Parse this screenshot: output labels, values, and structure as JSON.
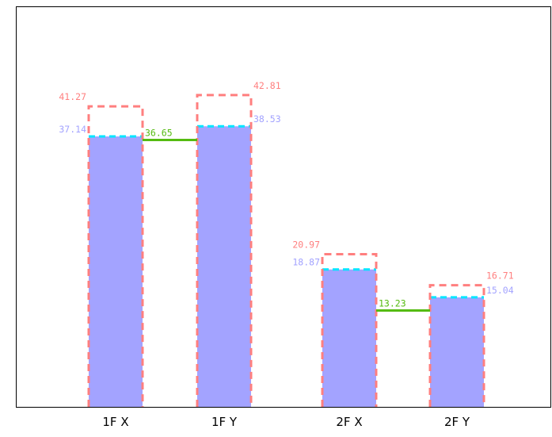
{
  "chart_data": {
    "type": "bar",
    "categories": [
      "1F X",
      "1F Y",
      "2F X",
      "2F Y"
    ],
    "series": [
      {
        "values": [
          37.14,
          38.53,
          18.87,
          15.04
        ]
      },
      {
        "values": [
          41.27,
          42.81,
          20.97,
          16.71
        ]
      }
    ],
    "connectors": [
      {
        "between": [
          "1F X",
          "1F Y"
        ],
        "value": 36.65
      },
      {
        "between": [
          "2F X",
          "2F Y"
        ],
        "value": 13.23
      }
    ],
    "ylim": [
      0,
      55
    ],
    "grid": false,
    "legend": "none",
    "colors": {
      "bar_fill": "#a3a3ff",
      "bar_label": "#a3a3ff",
      "bar_top_dash": "#00e5ff",
      "outline_dash": "#ff7f7f",
      "outline_label": "#ff7f7f",
      "connector": "#55bb11",
      "connector_label": "#55bb11",
      "axis": "#000000"
    }
  }
}
